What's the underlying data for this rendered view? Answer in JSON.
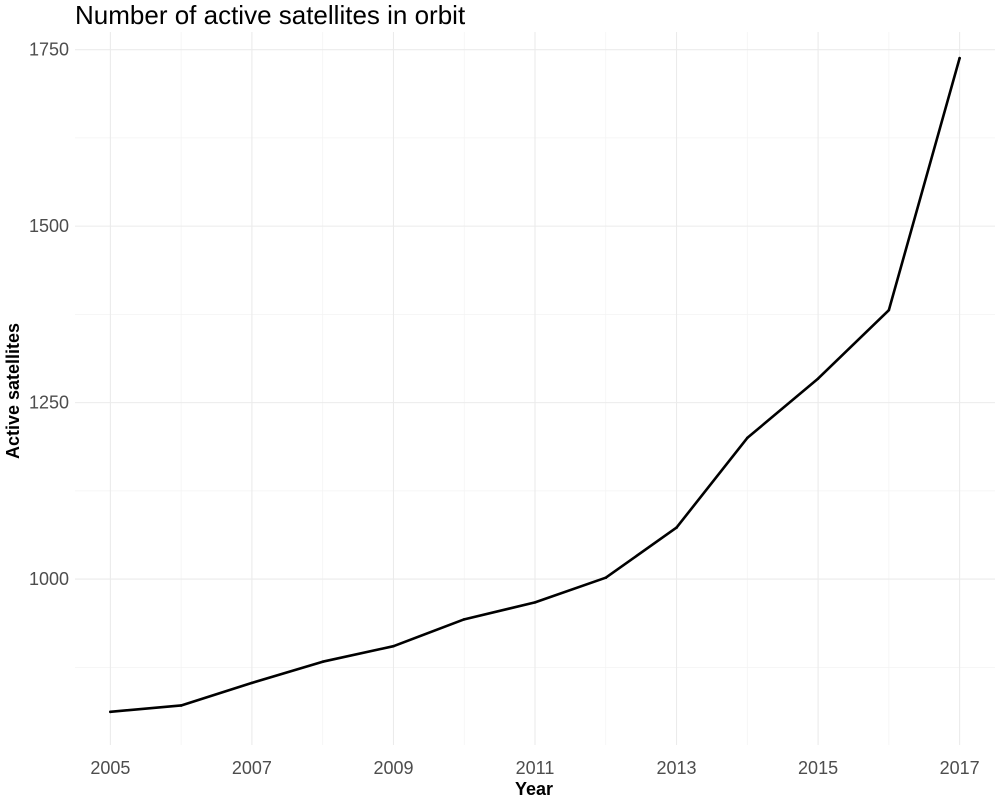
{
  "chart_data": {
    "type": "line",
    "title": "Number of active satellites in orbit",
    "xlabel": "Year",
    "ylabel": "Active satellites",
    "x": [
      2005,
      2006,
      2007,
      2008,
      2009,
      2010,
      2011,
      2012,
      2013,
      2014,
      2015,
      2016,
      2017
    ],
    "series": [
      {
        "values": [
          812,
          821,
          853,
          883,
          905,
          943,
          967,
          1002,
          1073,
          1200,
          1284,
          1381,
          1738
        ]
      }
    ],
    "xlim": [
      2004.5,
      2017.5
    ],
    "ylim": [
      765,
      1775
    ],
    "x_ticks": [
      "2005",
      "2007",
      "2009",
      "2011",
      "2013",
      "2015",
      "2017"
    ],
    "y_ticks": [
      "1000",
      "1250",
      "1500",
      "1750"
    ],
    "grid": true,
    "line_color": "#000000"
  }
}
